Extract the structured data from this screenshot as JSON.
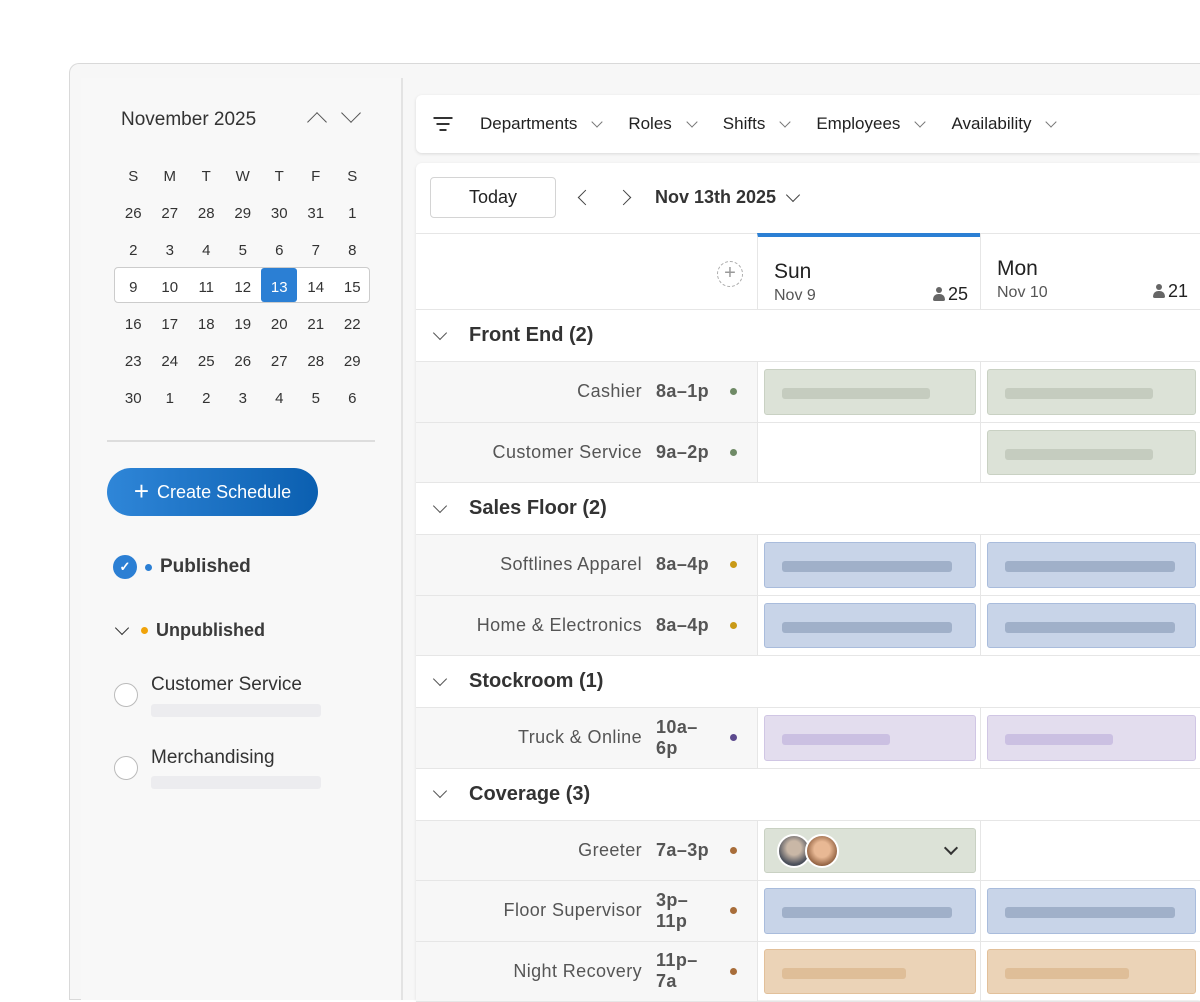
{
  "calendar": {
    "month_title": "November 2025",
    "weekdays": [
      "S",
      "M",
      "T",
      "W",
      "T",
      "F",
      "S"
    ],
    "weeks": [
      [
        "26",
        "27",
        "28",
        "29",
        "30",
        "31",
        "1"
      ],
      [
        "2",
        "3",
        "4",
        "5",
        "6",
        "7",
        "8"
      ],
      [
        "9",
        "10",
        "11",
        "12",
        "13",
        "14",
        "15"
      ],
      [
        "16",
        "17",
        "18",
        "19",
        "20",
        "21",
        "22"
      ],
      [
        "23",
        "24",
        "25",
        "26",
        "27",
        "28",
        "29"
      ],
      [
        "30",
        "1",
        "2",
        "3",
        "4",
        "5",
        "6"
      ]
    ],
    "selected_day": "13"
  },
  "sidebar": {
    "create_label": "Create Schedule",
    "published_label": "Published",
    "unpublished_label": "Unpublished",
    "schedules": [
      {
        "name": "Customer Service"
      },
      {
        "name": "Merchandising"
      }
    ]
  },
  "toolbar": {
    "filters": [
      {
        "label": "Departments"
      },
      {
        "label": "Roles"
      },
      {
        "label": "Shifts"
      },
      {
        "label": "Employees"
      },
      {
        "label": "Availability"
      }
    ]
  },
  "nav": {
    "today_label": "Today",
    "date_label": "Nov 13th 2025"
  },
  "days": [
    {
      "name": "Sun",
      "date": "Nov 9",
      "count": "25",
      "active": true
    },
    {
      "name": "Mon",
      "date": "Nov 10",
      "count": "21",
      "active": false
    }
  ],
  "colors": {
    "accent": "#2b7fd4",
    "green": {
      "bg": "#dce2d7",
      "border": "#c9d1c3",
      "bar": "#c5ccbf",
      "dot": "#6f8a66"
    },
    "blue": {
      "bg": "#c8d4e8",
      "border": "#a9bcdc",
      "bar": "#a0b0c9",
      "dot": "#c99a17"
    },
    "purple": {
      "bg": "#e3ddee",
      "border": "#d0c6e4",
      "bar": "#cbc0e2",
      "dot": "#5c4a8e"
    },
    "orange": {
      "bg": "#ebd3b7",
      "border": "#e2c09a",
      "bar": "#dfbe98",
      "dot": "#a86d3a"
    }
  },
  "groups": [
    {
      "title": "Front End (2)",
      "roles": [
        {
          "name": "Cashier",
          "time": "8a–1p",
          "dot": "green",
          "cells": [
            "green",
            "green"
          ]
        },
        {
          "name": "Customer Service",
          "time": "9a–2p",
          "dot": "green",
          "cells": [
            "empty",
            "green"
          ]
        }
      ]
    },
    {
      "title": "Sales Floor (2)",
      "roles": [
        {
          "name": "Softlines Apparel",
          "time": "8a–4p",
          "dot": "blue",
          "cells": [
            "blue",
            "blue"
          ]
        },
        {
          "name": "Home & Electronics",
          "time": "8a–4p",
          "dot": "blue",
          "cells": [
            "blue",
            "blue"
          ]
        }
      ]
    },
    {
      "title": "Stockroom (1)",
      "roles": [
        {
          "name": "Truck & Online",
          "time": "10a–6p",
          "dot": "purple",
          "cells": [
            "purple",
            "purple"
          ]
        }
      ]
    },
    {
      "title": "Coverage (3)",
      "roles": [
        {
          "name": "Greeter",
          "time": "7a–3p",
          "dot": "orange",
          "cells": [
            "avatars",
            "empty"
          ]
        },
        {
          "name": "Floor Supervisor",
          "time": "3p–11p",
          "dot": "orange",
          "cells": [
            "blue",
            "blue"
          ]
        },
        {
          "name": "Night Recovery",
          "time": "11p–7a",
          "dot": "orange",
          "cells": [
            "orange",
            "orange"
          ]
        }
      ]
    }
  ]
}
